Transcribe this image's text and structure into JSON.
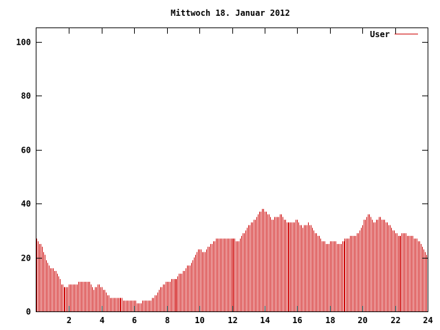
{
  "chart_data": {
    "type": "bar",
    "title": "Mittwoch 18. Januar 2012",
    "xlabel": "",
    "ylabel": "",
    "xlim": [
      0,
      24
    ],
    "ylim": [
      0,
      105
    ],
    "xticks": [
      "2",
      "4",
      "6",
      "8",
      "10",
      "12",
      "14",
      "16",
      "18",
      "20",
      "22",
      "24"
    ],
    "yticks": [
      "0",
      "20",
      "40",
      "60",
      "80",
      "100"
    ],
    "grid": false,
    "legend_position": "top-right",
    "series": [
      {
        "name": "User",
        "color": "#cc0000",
        "keypoints": [
          [
            0.0,
            27
          ],
          [
            0.3,
            24
          ],
          [
            0.5,
            21
          ],
          [
            0.7,
            17
          ],
          [
            0.9,
            16
          ],
          [
            1.1,
            15
          ],
          [
            1.3,
            14
          ],
          [
            1.5,
            10
          ],
          [
            1.8,
            9
          ],
          [
            2.1,
            10
          ],
          [
            2.4,
            10
          ],
          [
            2.7,
            11
          ],
          [
            3.2,
            11
          ],
          [
            3.5,
            8
          ],
          [
            3.8,
            10
          ],
          [
            4.1,
            8
          ],
          [
            4.4,
            6
          ],
          [
            4.5,
            5
          ],
          [
            5.0,
            5
          ],
          [
            5.5,
            4
          ],
          [
            6.0,
            4
          ],
          [
            6.3,
            3
          ],
          [
            6.6,
            4
          ],
          [
            7.0,
            4
          ],
          [
            7.3,
            6
          ],
          [
            7.6,
            9
          ],
          [
            8.0,
            11
          ],
          [
            8.5,
            12
          ],
          [
            9.0,
            15
          ],
          [
            9.5,
            18
          ],
          [
            9.9,
            23
          ],
          [
            10.3,
            22
          ],
          [
            10.7,
            25
          ],
          [
            11.1,
            27
          ],
          [
            11.6,
            27
          ],
          [
            12.0,
            27
          ],
          [
            12.4,
            26
          ],
          [
            12.8,
            30
          ],
          [
            13.2,
            33
          ],
          [
            13.5,
            35
          ],
          [
            13.8,
            38
          ],
          [
            14.1,
            37
          ],
          [
            14.4,
            34
          ],
          [
            14.7,
            35
          ],
          [
            15.0,
            36
          ],
          [
            15.3,
            33
          ],
          [
            15.7,
            33
          ],
          [
            16.0,
            34
          ],
          [
            16.3,
            31
          ],
          [
            16.7,
            33
          ],
          [
            17.0,
            30
          ],
          [
            17.4,
            27
          ],
          [
            17.8,
            25
          ],
          [
            18.2,
            26
          ],
          [
            18.6,
            25
          ],
          [
            19.0,
            27
          ],
          [
            19.4,
            28
          ],
          [
            19.8,
            29
          ],
          [
            20.1,
            34
          ],
          [
            20.4,
            36
          ],
          [
            20.7,
            33
          ],
          [
            21.0,
            35
          ],
          [
            21.3,
            34
          ],
          [
            21.6,
            32
          ],
          [
            21.9,
            30
          ],
          [
            22.2,
            28
          ],
          [
            22.5,
            29
          ],
          [
            22.9,
            28
          ],
          [
            23.3,
            27
          ],
          [
            23.6,
            25
          ],
          [
            23.9,
            21
          ]
        ]
      }
    ]
  }
}
